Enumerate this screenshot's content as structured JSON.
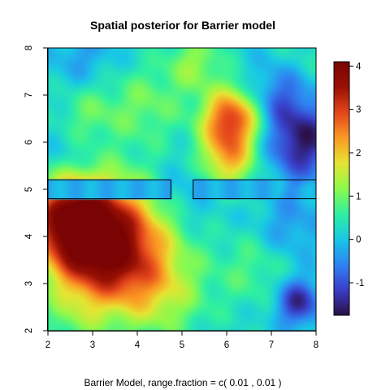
{
  "chart_data": {
    "type": "heatmap",
    "title": "Spatial posterior for Barrier model",
    "caption": "Barrier Model, range.fraction = c( 0.01 ,  0.01 )",
    "xlabel": "",
    "ylabel": "",
    "xlim": [
      2,
      8
    ],
    "ylim": [
      2,
      8
    ],
    "x_ticks": [
      "2",
      "3",
      "4",
      "5",
      "6",
      "7",
      "8"
    ],
    "y_ticks": [
      "2",
      "3",
      "4",
      "5",
      "6",
      "7",
      "8"
    ],
    "colorbar": {
      "range": [
        -1.75,
        4.1
      ],
      "ticks": [
        "-1",
        "0",
        "1",
        "2",
        "3",
        "4"
      ],
      "colors": [
        "#2b1045",
        "#3a3ec9",
        "#2f84f2",
        "#19c8e6",
        "#2ff0a0",
        "#8dfa4c",
        "#e6e432",
        "#fb9a24",
        "#e4451c",
        "#9a1104",
        "#7a0403"
      ]
    },
    "barriers": [
      {
        "x": [
          2.0,
          4.75
        ],
        "y": [
          4.8,
          5.2
        ]
      },
      {
        "x": [
          5.25,
          8.0
        ],
        "y": [
          4.8,
          5.2
        ]
      }
    ],
    "hotspots": [
      {
        "x": 3.3,
        "y": 3.8,
        "value": 4.1,
        "spread": 0.9
      },
      {
        "x": 2.5,
        "y": 4.4,
        "value": 2.8,
        "spread": 0.6
      },
      {
        "x": 6.1,
        "y": 6.5,
        "value": 2.8,
        "spread": 0.45
      },
      {
        "x": 6.0,
        "y": 5.6,
        "value": 1.8,
        "spread": 0.45
      },
      {
        "x": 4.6,
        "y": 2.8,
        "value": 1.0,
        "spread": 0.7
      },
      {
        "x": 4.2,
        "y": 6.8,
        "value": 0.8,
        "spread": 0.6
      },
      {
        "x": 2.9,
        "y": 6.6,
        "value": 0.7,
        "spread": 0.5
      },
      {
        "x": 6.6,
        "y": 3.3,
        "value": 0.6,
        "spread": 0.6
      },
      {
        "x": 5.3,
        "y": 7.7,
        "value": 1.0,
        "spread": 0.45
      },
      {
        "x": 7.7,
        "y": 7.8,
        "value": 0.3,
        "spread": 0.5
      },
      {
        "x": 7.7,
        "y": 6.0,
        "value": -1.7,
        "spread": 0.55
      },
      {
        "x": 7.2,
        "y": 7.0,
        "value": -0.9,
        "spread": 0.5
      },
      {
        "x": 7.6,
        "y": 2.6,
        "value": -1.6,
        "spread": 0.35
      },
      {
        "x": 7.4,
        "y": 4.2,
        "value": -0.6,
        "spread": 0.5
      },
      {
        "x": 2.5,
        "y": 5.6,
        "value": -0.4,
        "spread": 0.5
      },
      {
        "x": 2.8,
        "y": 7.8,
        "value": -0.5,
        "spread": 0.5
      },
      {
        "x": 5.2,
        "y": 5.0,
        "value": -0.5,
        "spread": 0.5
      },
      {
        "x": 2.6,
        "y": 2.2,
        "value": 0.4,
        "spread": 0.45
      }
    ],
    "grid": false,
    "legend": "right colorbar"
  }
}
